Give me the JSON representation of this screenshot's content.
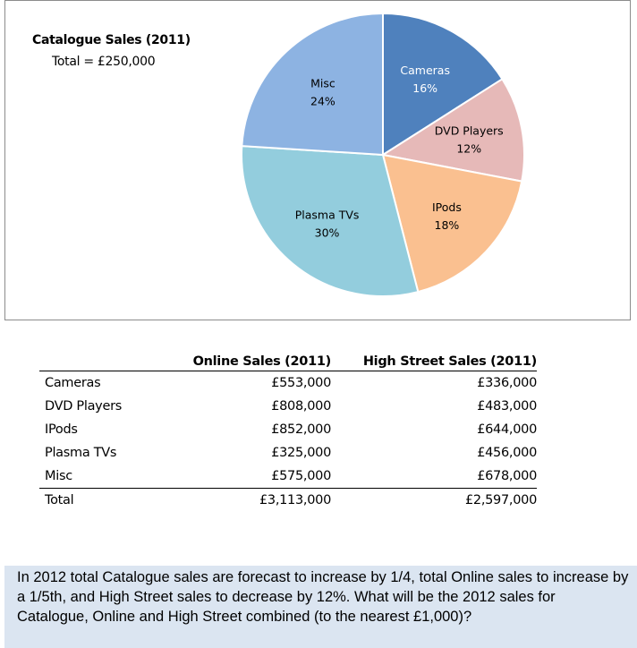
{
  "chart_data": {
    "type": "pie",
    "title": "Catalogue Sales (2011)",
    "subtitle": "Total = £250,000",
    "slices": [
      {
        "label": "Cameras",
        "percent_label": "16%",
        "value": 16,
        "color": "#4f81bd",
        "text_color": "#ffffff"
      },
      {
        "label": "DVD Players",
        "percent_label": "12%",
        "value": 12,
        "color": "#e6b9b8",
        "text_color": "#000000"
      },
      {
        "label": "IPods",
        "percent_label": "18%",
        "value": 18,
        "color": "#fac090",
        "text_color": "#000000"
      },
      {
        "label": "Plasma TVs",
        "percent_label": "30%",
        "value": 30,
        "color": "#93cddd",
        "text_color": "#000000"
      },
      {
        "label": "Misc",
        "percent_label": "24%",
        "value": 24,
        "color": "#8db3e2",
        "text_color": "#000000"
      }
    ]
  },
  "table": {
    "headers": [
      "",
      "Online Sales (2011)",
      "High Street Sales (2011)"
    ],
    "rows": [
      [
        "Cameras",
        "£553,000",
        "£336,000"
      ],
      [
        "DVD Players",
        "£808,000",
        "£483,000"
      ],
      [
        "IPods",
        "£852,000",
        "£644,000"
      ],
      [
        "Plasma TVs",
        "£325,000",
        "£456,000"
      ],
      [
        "Misc",
        "£575,000",
        "£678,000"
      ]
    ],
    "total": [
      "Total",
      "£3,113,000",
      "£2,597,000"
    ]
  },
  "question": "In 2012 total Catalogue sales are forecast to increase by 1/4, total Online sales to increase by a 1/5th, and High Street sales to decrease by 12%. What will be the 2012 sales for Catalogue, Online and High Street combined (to the nearest £1,000)?"
}
